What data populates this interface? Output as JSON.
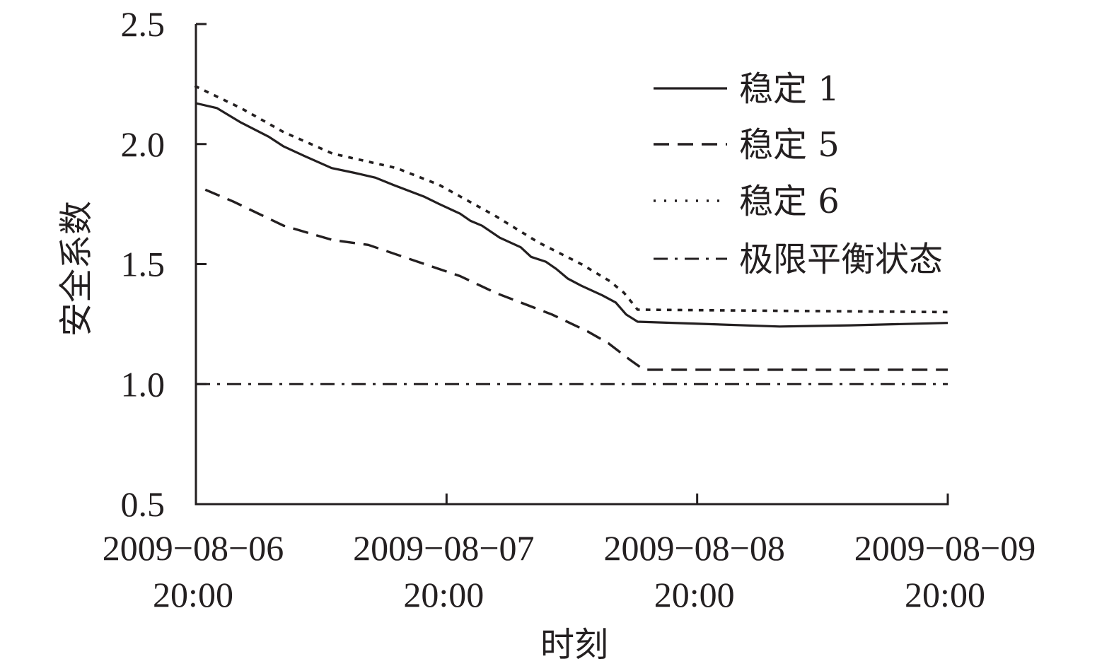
{
  "chart_data": {
    "type": "line",
    "title": "",
    "xlabel": "时刻",
    "ylabel": "安全系数",
    "ylim": [
      0.5,
      2.5
    ],
    "yticks": [
      "0.5",
      "1.0",
      "1.5",
      "2.0",
      "2.5"
    ],
    "xticks": [
      {
        "date": "2009−08−06",
        "time": "20:00"
      },
      {
        "date": "2009−08−07",
        "time": "20:00"
      },
      {
        "date": "2009−08−08",
        "time": "20:00"
      },
      {
        "date": "2009−08−09",
        "time": "20:00"
      }
    ],
    "x_unit": "hours since 2009-08-06 20:00",
    "xlim": [
      0,
      72
    ],
    "grid": false,
    "legend_position": "upper right",
    "series": [
      {
        "name": "稳定 1",
        "style": "solid",
        "x": [
          0,
          2.0,
          4.3,
          7.0,
          8.4,
          10.4,
          13.0,
          15.2,
          17.2,
          18.9,
          21.9,
          23.3,
          25.3,
          26.3,
          27.4,
          29.1,
          31.1,
          32.1,
          33.5,
          34.5,
          35.6,
          36.9,
          38.9,
          40.2,
          41.2,
          42.3,
          49.1,
          55.9,
          62.7,
          72.0
        ],
        "values": [
          2.17,
          2.15,
          2.09,
          2.03,
          1.99,
          1.95,
          1.9,
          1.88,
          1.86,
          1.83,
          1.78,
          1.75,
          1.71,
          1.68,
          1.66,
          1.61,
          1.57,
          1.53,
          1.51,
          1.48,
          1.44,
          1.41,
          1.37,
          1.34,
          1.29,
          1.26,
          1.25,
          1.24,
          1.245,
          1.255
        ]
      },
      {
        "name": "稳定 5",
        "style": "dashed",
        "x": [
          0.9,
          3.6,
          8.4,
          13.1,
          16.5,
          21.9,
          25.3,
          28.7,
          34.1,
          37.5,
          39.5,
          41.6,
          42.9,
          72.0
        ],
        "values": [
          1.81,
          1.76,
          1.66,
          1.6,
          1.58,
          1.5,
          1.45,
          1.38,
          1.29,
          1.22,
          1.17,
          1.1,
          1.06,
          1.06
        ]
      },
      {
        "name": "稳定 6",
        "style": "dotted",
        "x": [
          0,
          4.3,
          8.4,
          13.1,
          19.2,
          23.3,
          28.7,
          32.8,
          36.9,
          39.6,
          41.0,
          42.3,
          72.0
        ],
        "values": [
          2.24,
          2.15,
          2.05,
          1.96,
          1.9,
          1.83,
          1.7,
          1.59,
          1.5,
          1.43,
          1.38,
          1.31,
          1.3
        ]
      },
      {
        "name": "极限平衡状态",
        "style": "dashdot",
        "x": [
          0,
          72
        ],
        "values": [
          1.0,
          1.0
        ]
      }
    ]
  },
  "colors": {
    "ink": "#231f20",
    "background": "#ffffff"
  }
}
